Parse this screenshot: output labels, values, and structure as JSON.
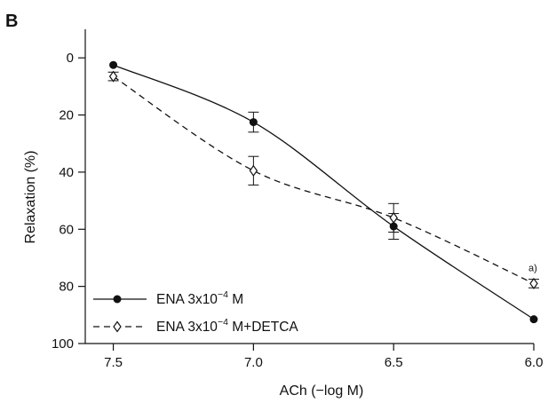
{
  "chart_data": {
    "type": "line",
    "panel_label": "B",
    "xlabel": "ACh (−log M)",
    "ylabel": "Relaxation (%)",
    "x_reversed": true,
    "y_inverted": true,
    "xlim": [
      7.6,
      6.0
    ],
    "ylim": [
      100,
      -10
    ],
    "x_ticks": [
      7.5,
      7.0,
      6.5,
      6.0
    ],
    "x_tick_labels": [
      "7.5",
      "7.0",
      "6.5",
      "6.0"
    ],
    "y_ticks": [
      0,
      20,
      40,
      60,
      80,
      100
    ],
    "y_tick_labels": [
      "0",
      "20",
      "40",
      "60",
      "80",
      "100"
    ],
    "series": [
      {
        "name": "ENA 3x10⁻⁴ M",
        "legend_main": "ENA 3x10",
        "legend_exp": "−4",
        "legend_tail": " M",
        "marker": "filled-circle",
        "line_style": "solid",
        "x": [
          7.5,
          7.0,
          6.5,
          6.0
        ],
        "y": [
          2.5,
          22.5,
          59,
          91.5
        ],
        "error": [
          0,
          3.5,
          4.5,
          0
        ]
      },
      {
        "name": "ENA 3x10⁻⁴ M+DETCA",
        "legend_main": "ENA 3x10",
        "legend_exp": "−4",
        "legend_tail": " M+DETCA",
        "marker": "open-diamond",
        "line_style": "dashed",
        "x": [
          7.5,
          7.0,
          6.5,
          6.0
        ],
        "y": [
          6.5,
          39.5,
          56,
          79
        ],
        "error": [
          1.5,
          5,
          5,
          1.5
        ]
      }
    ],
    "annotations": [
      {
        "text": "a)",
        "x": 6.0,
        "y": 79,
        "series": 1
      }
    ],
    "legend_position": "bottom-left",
    "grid": false
  }
}
